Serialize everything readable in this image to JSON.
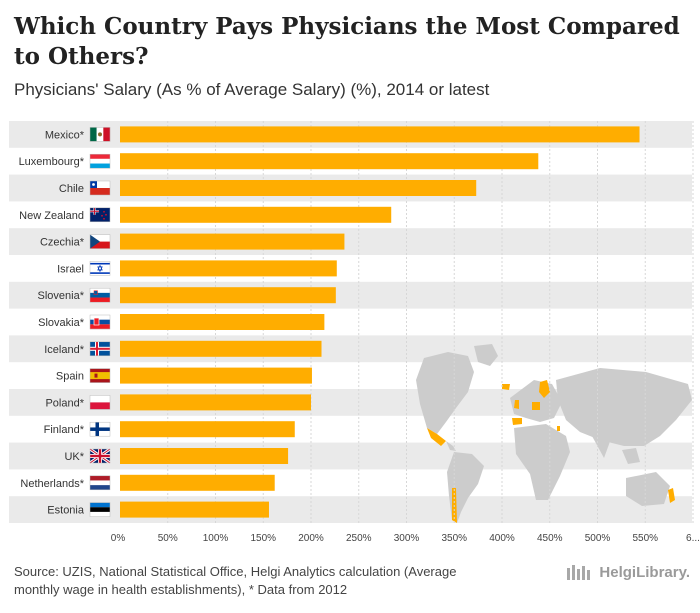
{
  "header": {
    "title": "Which Country Pays Physicians the Most Compared to Others?",
    "subtitle": "Physicians' Salary (As % of Average Salary) (%), 2014 or latest"
  },
  "colors": {
    "bar": "#FFAD00",
    "row_band": "#EAEAEA",
    "grid": "#D7D7D7",
    "map_land": "#CCCCCC",
    "map_highlight": "#FFAD00"
  },
  "chart_data": {
    "type": "bar",
    "orientation": "horizontal",
    "title": "Which Country Pays Physicians the Most Compared to Others?",
    "ylabel": "Physicians' Salary (As % of Average Salary) (%)",
    "categories": [
      "Mexico*",
      "Luxembourg*",
      "Chile",
      "New Zealand",
      "Czechia*",
      "Israel",
      "Slovenia*",
      "Slovakia*",
      "Iceland*",
      "Spain",
      "Poland*",
      "Finland*",
      "UK*",
      "Netherlands*",
      "Estonia"
    ],
    "values": [
      544,
      438,
      373,
      284,
      235,
      227,
      226,
      214,
      211,
      201,
      200,
      183,
      176,
      162,
      156
    ],
    "flags": [
      "mexico-flag-icon",
      "luxembourg-flag-icon",
      "chile-flag-icon",
      "new-zealand-flag-icon",
      "czechia-flag-icon",
      "israel-flag-icon",
      "slovenia-flag-icon",
      "slovakia-flag-icon",
      "iceland-flag-icon",
      "spain-flag-icon",
      "poland-flag-icon",
      "finland-flag-icon",
      "uk-flag-icon",
      "netherlands-flag-icon",
      "estonia-flag-icon"
    ],
    "x_ticks": [
      "0%",
      "50%",
      "100%",
      "150%",
      "200%",
      "250%",
      "300%",
      "350%",
      "400%",
      "450%",
      "500%",
      "550%",
      "6..."
    ],
    "xlim": [
      0,
      600
    ],
    "grid": true
  },
  "footer": {
    "source_line1": "Source: UZIS, National Statistical Office, Helgi Analytics calculation (Average",
    "source_line2": "monthly wage in health establishments), * Data from 2012",
    "brand": "HelgiLibrary."
  }
}
